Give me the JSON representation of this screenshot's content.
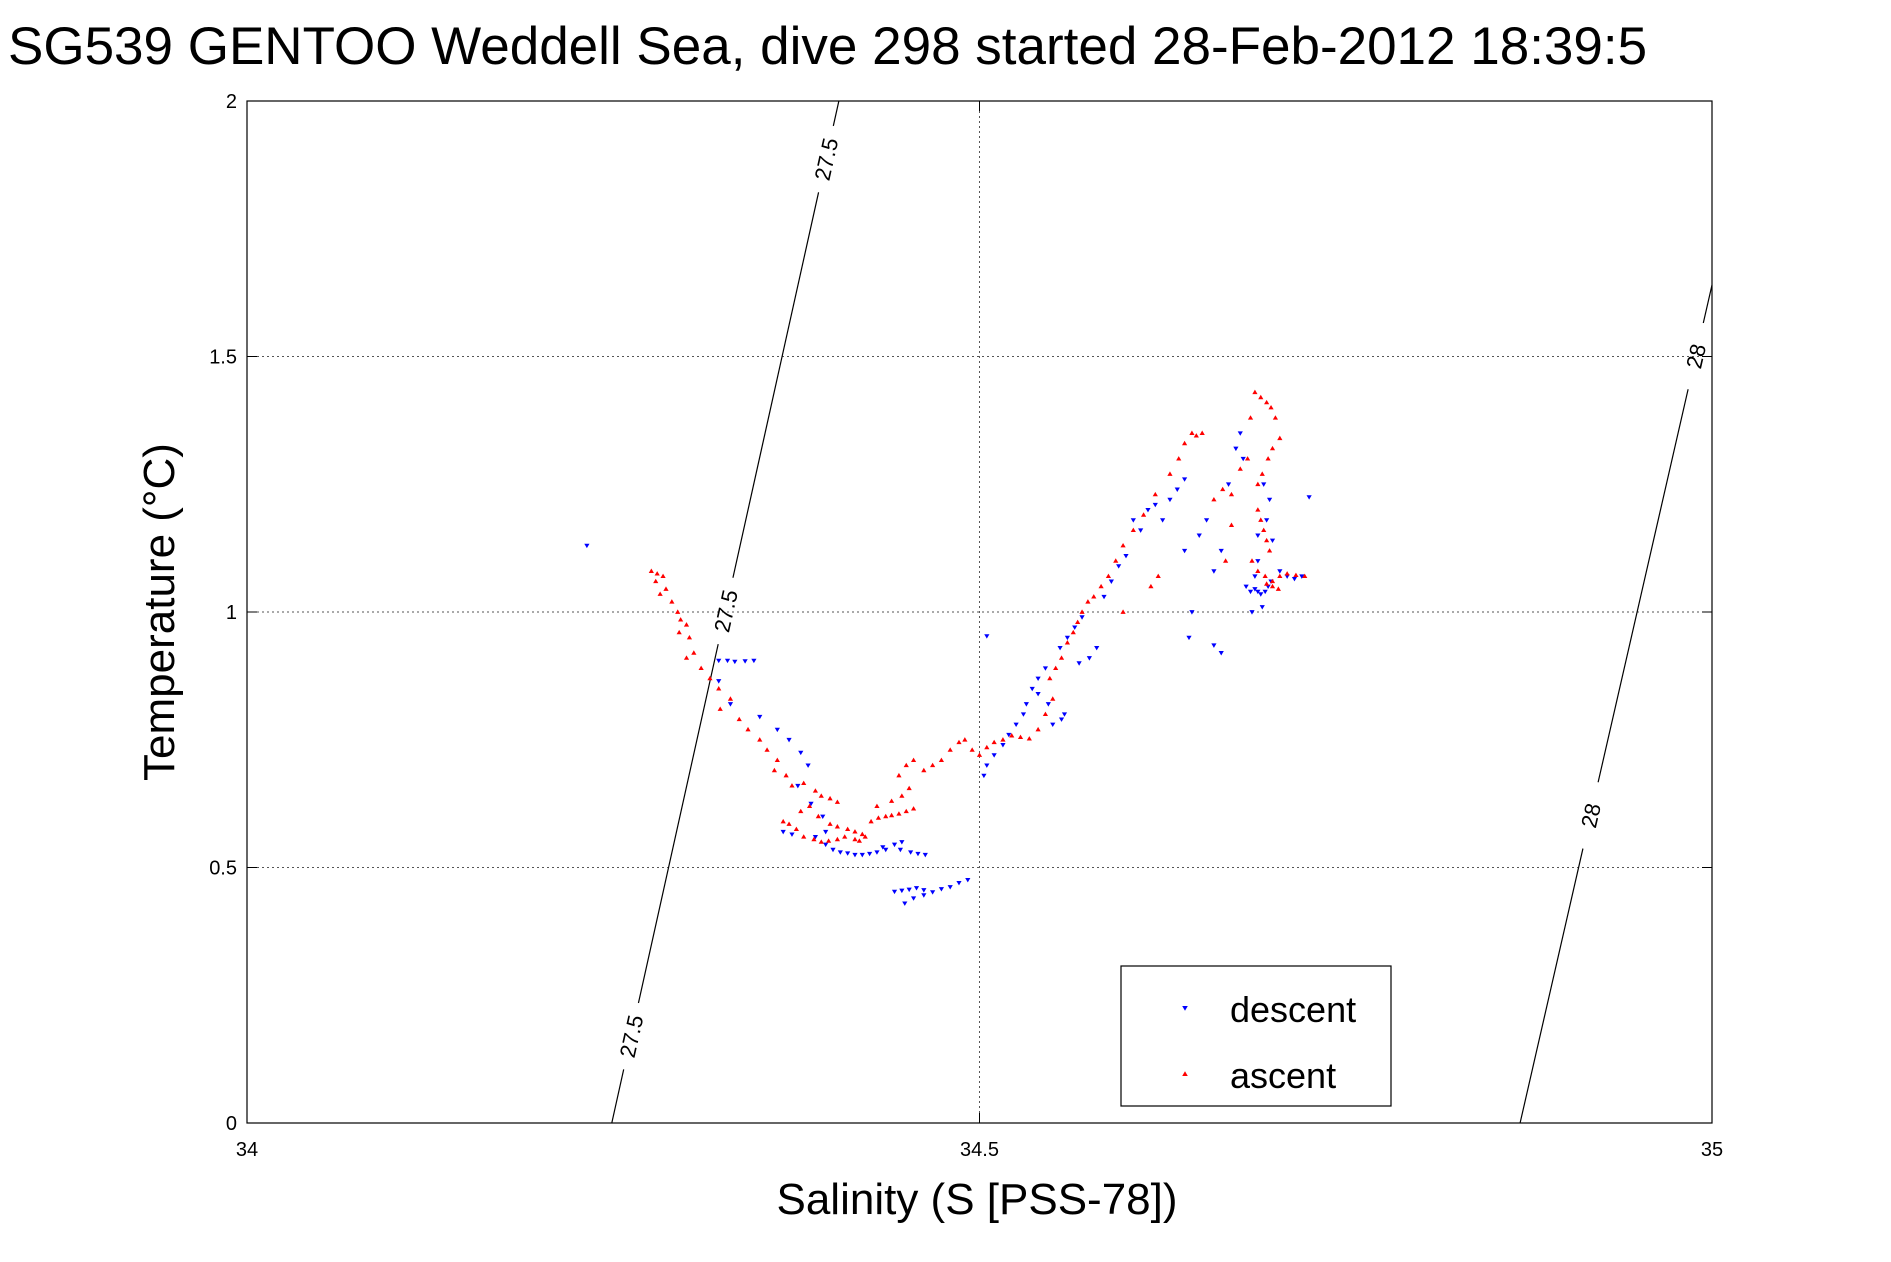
{
  "chart_data": {
    "type": "scatter",
    "title": "SG539 GENTOO Weddell Sea, dive 298 started 28-Feb-2012 18:39:5",
    "xlabel": "Salinity (S [PSS-78])",
    "ylabel": "Temperature (°C)",
    "xlim": [
      34,
      35
    ],
    "ylim": [
      0,
      2
    ],
    "xticks": [
      34,
      34.5,
      35
    ],
    "xtick_labels": [
      "34",
      "34.5",
      "35"
    ],
    "yticks": [
      0,
      0.5,
      1,
      1.5,
      2
    ],
    "ytick_labels": [
      "0",
      "0.5",
      "1",
      "1.5",
      "2"
    ],
    "grid": true,
    "legend_position": "bottom-right",
    "density_contours": [
      {
        "label": "27.5",
        "points": [
          [
            34.249,
            0.0
          ],
          [
            34.404,
            2.0
          ]
        ],
        "label_positions": [
          [
            34.262,
            0.17
          ],
          [
            34.33,
            1.0
          ],
          [
            34.405,
            1.88
          ]
        ]
      },
      {
        "label": "28",
        "points": [
          [
            34.869,
            0.0
          ],
          [
            35.0,
            1.64
          ]
        ],
        "label_positions": [
          [
            34.92,
            0.6
          ],
          [
            34.99,
            1.5
          ]
        ]
      }
    ],
    "series": [
      {
        "name": "descent",
        "marker": "triangle-down",
        "color": "#0000ff",
        "points": [
          [
            34.232,
            1.13
          ],
          [
            34.322,
            0.905
          ],
          [
            34.328,
            0.905
          ],
          [
            34.333,
            0.903
          ],
          [
            34.34,
            0.904
          ],
          [
            34.346,
            0.905
          ],
          [
            34.322,
            0.865
          ],
          [
            34.33,
            0.82
          ],
          [
            34.35,
            0.795
          ],
          [
            34.362,
            0.77
          ],
          [
            34.37,
            0.75
          ],
          [
            34.378,
            0.725
          ],
          [
            34.383,
            0.7
          ],
          [
            34.376,
            0.66
          ],
          [
            34.385,
            0.625
          ],
          [
            34.393,
            0.6
          ],
          [
            34.395,
            0.57
          ],
          [
            34.366,
            0.57
          ],
          [
            34.372,
            0.565
          ],
          [
            34.388,
            0.56
          ],
          [
            34.395,
            0.545
          ],
          [
            34.4,
            0.535
          ],
          [
            34.405,
            0.53
          ],
          [
            34.41,
            0.528
          ],
          [
            34.415,
            0.525
          ],
          [
            34.42,
            0.525
          ],
          [
            34.425,
            0.527
          ],
          [
            34.43,
            0.53
          ],
          [
            34.436,
            0.535
          ],
          [
            34.442,
            0.545
          ],
          [
            34.447,
            0.55
          ],
          [
            34.434,
            0.54
          ],
          [
            34.453,
            0.53
          ],
          [
            34.458,
            0.527
          ],
          [
            34.463,
            0.525
          ],
          [
            34.446,
            0.535
          ],
          [
            34.442,
            0.453
          ],
          [
            34.447,
            0.455
          ],
          [
            34.452,
            0.457
          ],
          [
            34.457,
            0.46
          ],
          [
            34.462,
            0.456
          ],
          [
            34.468,
            0.452
          ],
          [
            34.474,
            0.458
          ],
          [
            34.48,
            0.462
          ],
          [
            34.486,
            0.47
          ],
          [
            34.492,
            0.476
          ],
          [
            34.449,
            0.43
          ],
          [
            34.455,
            0.44
          ],
          [
            34.462,
            0.446
          ],
          [
            34.505,
            0.7
          ],
          [
            34.503,
            0.68
          ],
          [
            34.51,
            0.72
          ],
          [
            34.516,
            0.74
          ],
          [
            34.52,
            0.76
          ],
          [
            34.505,
            0.953
          ],
          [
            34.525,
            0.78
          ],
          [
            34.53,
            0.8
          ],
          [
            34.532,
            0.82
          ],
          [
            34.536,
            0.85
          ],
          [
            34.54,
            0.87
          ],
          [
            34.545,
            0.89
          ],
          [
            34.54,
            0.84
          ],
          [
            34.547,
            0.82
          ],
          [
            34.55,
            0.78
          ],
          [
            34.556,
            0.79
          ],
          [
            34.558,
            0.8
          ],
          [
            34.555,
            0.93
          ],
          [
            34.56,
            0.95
          ],
          [
            34.565,
            0.97
          ],
          [
            34.57,
            0.99
          ],
          [
            34.575,
            0.91
          ],
          [
            34.568,
            0.9
          ],
          [
            34.58,
            0.93
          ],
          [
            34.585,
            1.03
          ],
          [
            34.59,
            1.06
          ],
          [
            34.595,
            1.09
          ],
          [
            34.6,
            1.11
          ],
          [
            34.605,
            1.18
          ],
          [
            34.61,
            1.16
          ],
          [
            34.615,
            1.2
          ],
          [
            34.62,
            1.21
          ],
          [
            34.625,
            1.18
          ],
          [
            34.63,
            1.22
          ],
          [
            34.635,
            1.24
          ],
          [
            34.64,
            1.26
          ],
          [
            34.64,
            1.12
          ],
          [
            34.645,
            1.0
          ],
          [
            34.65,
            1.15
          ],
          [
            34.655,
            1.18
          ],
          [
            34.66,
            1.08
          ],
          [
            34.665,
            1.12
          ],
          [
            34.67,
            1.25
          ],
          [
            34.675,
            1.32
          ],
          [
            34.678,
            1.35
          ],
          [
            34.68,
            1.3
          ],
          [
            34.682,
            1.05
          ],
          [
            34.685,
            1.04
          ],
          [
            34.688,
            1.045
          ],
          [
            34.69,
            1.04
          ],
          [
            34.692,
            1.035
          ],
          [
            34.695,
            1.04
          ],
          [
            34.697,
            1.05
          ],
          [
            34.699,
            1.06
          ],
          [
            34.693,
            1.01
          ],
          [
            34.686,
            1.0
          ],
          [
            34.69,
            1.15
          ],
          [
            34.694,
            1.25
          ],
          [
            34.698,
            1.22
          ],
          [
            34.7,
            1.14
          ],
          [
            34.688,
            1.07
          ],
          [
            34.705,
            1.08
          ],
          [
            34.71,
            1.07
          ],
          [
            34.715,
            1.065
          ],
          [
            34.72,
            1.07
          ],
          [
            34.725,
            1.225
          ],
          [
            34.66,
            0.935
          ],
          [
            34.665,
            0.92
          ],
          [
            34.69,
            1.1
          ],
          [
            34.696,
            1.18
          ],
          [
            34.643,
            0.95
          ]
        ]
      },
      {
        "name": "ascent",
        "marker": "triangle-up",
        "color": "#ff0000",
        "points": [
          [
            34.276,
            1.08
          ],
          [
            34.28,
            1.075
          ],
          [
            34.284,
            1.07
          ],
          [
            34.279,
            1.06
          ],
          [
            34.286,
            1.045
          ],
          [
            34.282,
            1.035
          ],
          [
            34.29,
            1.02
          ],
          [
            34.294,
            1.0
          ],
          [
            34.296,
            0.985
          ],
          [
            34.3,
            0.975
          ],
          [
            34.295,
            0.96
          ],
          [
            34.302,
            0.95
          ],
          [
            34.305,
            0.92
          ],
          [
            34.3,
            0.91
          ],
          [
            34.31,
            0.89
          ],
          [
            34.316,
            0.87
          ],
          [
            34.322,
            0.85
          ],
          [
            34.33,
            0.83
          ],
          [
            34.323,
            0.81
          ],
          [
            34.336,
            0.79
          ],
          [
            34.342,
            0.77
          ],
          [
            34.35,
            0.75
          ],
          [
            34.355,
            0.73
          ],
          [
            34.362,
            0.71
          ],
          [
            34.36,
            0.69
          ],
          [
            34.368,
            0.68
          ],
          [
            34.372,
            0.66
          ],
          [
            34.38,
            0.665
          ],
          [
            34.388,
            0.65
          ],
          [
            34.392,
            0.64
          ],
          [
            34.398,
            0.635
          ],
          [
            34.403,
            0.628
          ],
          [
            34.384,
            0.62
          ],
          [
            34.378,
            0.61
          ],
          [
            34.39,
            0.6
          ],
          [
            34.398,
            0.585
          ],
          [
            34.403,
            0.58
          ],
          [
            34.41,
            0.575
          ],
          [
            34.415,
            0.57
          ],
          [
            34.42,
            0.565
          ],
          [
            34.408,
            0.56
          ],
          [
            34.403,
            0.555
          ],
          [
            34.397,
            0.552
          ],
          [
            34.392,
            0.55
          ],
          [
            34.387,
            0.555
          ],
          [
            34.38,
            0.56
          ],
          [
            34.375,
            0.575
          ],
          [
            34.37,
            0.585
          ],
          [
            34.366,
            0.59
          ],
          [
            34.415,
            0.555
          ],
          [
            34.418,
            0.552
          ],
          [
            34.422,
            0.56
          ],
          [
            34.426,
            0.59
          ],
          [
            34.431,
            0.597
          ],
          [
            34.436,
            0.6
          ],
          [
            34.44,
            0.602
          ],
          [
            34.445,
            0.605
          ],
          [
            34.45,
            0.61
          ],
          [
            34.455,
            0.615
          ],
          [
            34.43,
            0.62
          ],
          [
            34.44,
            0.63
          ],
          [
            34.447,
            0.64
          ],
          [
            34.452,
            0.655
          ],
          [
            34.445,
            0.68
          ],
          [
            34.45,
            0.7
          ],
          [
            34.455,
            0.71
          ],
          [
            34.462,
            0.69
          ],
          [
            34.468,
            0.7
          ],
          [
            34.474,
            0.71
          ],
          [
            34.48,
            0.73
          ],
          [
            34.486,
            0.745
          ],
          [
            34.49,
            0.75
          ],
          [
            34.495,
            0.73
          ],
          [
            34.5,
            0.72
          ],
          [
            34.505,
            0.735
          ],
          [
            34.51,
            0.745
          ],
          [
            34.516,
            0.75
          ],
          [
            34.522,
            0.758
          ],
          [
            34.528,
            0.755
          ],
          [
            34.534,
            0.752
          ],
          [
            34.54,
            0.77
          ],
          [
            34.545,
            0.8
          ],
          [
            34.55,
            0.83
          ],
          [
            34.548,
            0.87
          ],
          [
            34.552,
            0.89
          ],
          [
            34.556,
            0.91
          ],
          [
            34.56,
            0.94
          ],
          [
            34.564,
            0.96
          ],
          [
            34.567,
            0.98
          ],
          [
            34.57,
            1.0
          ],
          [
            34.574,
            1.02
          ],
          [
            34.578,
            1.03
          ],
          [
            34.583,
            1.05
          ],
          [
            34.588,
            1.07
          ],
          [
            34.593,
            1.1
          ],
          [
            34.598,
            1.13
          ],
          [
            34.605,
            1.16
          ],
          [
            34.612,
            1.19
          ],
          [
            34.62,
            1.23
          ],
          [
            34.63,
            1.27
          ],
          [
            34.636,
            1.3
          ],
          [
            34.64,
            1.33
          ],
          [
            34.645,
            1.35
          ],
          [
            34.648,
            1.345
          ],
          [
            34.652,
            1.35
          ],
          [
            34.66,
            1.22
          ],
          [
            34.666,
            1.24
          ],
          [
            34.672,
            1.23
          ],
          [
            34.678,
            1.28
          ],
          [
            34.683,
            1.3
          ],
          [
            34.685,
            1.38
          ],
          [
            34.688,
            1.43
          ],
          [
            34.692,
            1.42
          ],
          [
            34.696,
            1.41
          ],
          [
            34.699,
            1.4
          ],
          [
            34.702,
            1.38
          ],
          [
            34.705,
            1.34
          ],
          [
            34.69,
            1.2
          ],
          [
            34.692,
            1.18
          ],
          [
            34.694,
            1.16
          ],
          [
            34.696,
            1.14
          ],
          [
            34.698,
            1.12
          ],
          [
            34.686,
            1.1
          ],
          [
            34.69,
            1.08
          ],
          [
            34.695,
            1.07
          ],
          [
            34.7,
            1.06
          ],
          [
            34.705,
            1.07
          ],
          [
            34.71,
            1.075
          ],
          [
            34.716,
            1.072
          ],
          [
            34.722,
            1.07
          ],
          [
            34.696,
            1.055
          ],
          [
            34.7,
            1.05
          ],
          [
            34.704,
            1.045
          ],
          [
            34.69,
            1.25
          ],
          [
            34.693,
            1.27
          ],
          [
            34.697,
            1.3
          ],
          [
            34.7,
            1.32
          ],
          [
            34.668,
            1.1
          ],
          [
            34.672,
            1.17
          ],
          [
            34.617,
            1.05
          ],
          [
            34.622,
            1.07
          ],
          [
            34.598,
            1.0
          ]
        ]
      }
    ]
  }
}
